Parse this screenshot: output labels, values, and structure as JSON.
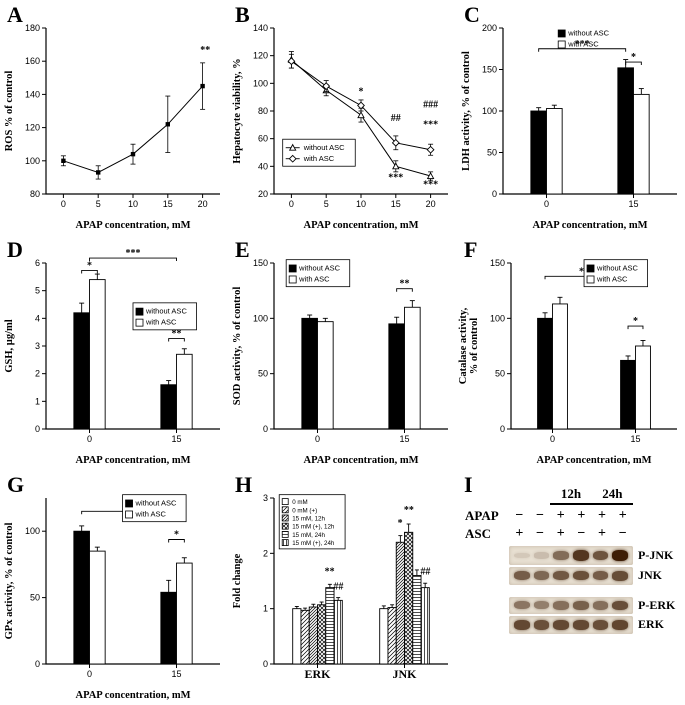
{
  "panels": [
    "A",
    "B",
    "C",
    "D",
    "E",
    "F",
    "G",
    "H",
    "I"
  ],
  "colors": {
    "bar_black": "#000000",
    "bar_white": "#ffffff",
    "background": "#ffffff"
  },
  "chart_data": [
    {
      "panel": "A",
      "type": "line",
      "xlabel": "APAP concentration, mM",
      "ylabel": "ROS % of control",
      "x": [
        0,
        5,
        10,
        15,
        20
      ],
      "xlim": [
        -2.5,
        22.5
      ],
      "ylim": [
        80,
        180
      ],
      "yticks": [
        80,
        100,
        120,
        140,
        160,
        180
      ],
      "series": [
        {
          "name": "",
          "marker": "square",
          "fill": "black",
          "values": [
            100,
            93,
            104,
            122,
            145
          ],
          "errors": [
            3,
            4,
            6,
            17,
            14
          ]
        }
      ],
      "annotations": [
        {
          "text": "**",
          "fx": 0.915,
          "fy": 0.85
        }
      ]
    },
    {
      "panel": "B",
      "type": "line",
      "xlabel": "APAP concentration, mM",
      "ylabel": "Hepatocyte viability, %",
      "x": [
        0,
        5,
        10,
        15,
        20
      ],
      "xlim": [
        -2.5,
        22.5
      ],
      "ylim": [
        20,
        140
      ],
      "yticks": [
        20,
        40,
        60,
        80,
        100,
        120,
        140
      ],
      "series": [
        {
          "name": "without ASC",
          "marker": "triangle",
          "fill": "white",
          "values": [
            117,
            95,
            77,
            40,
            33
          ],
          "errors": [
            6,
            4,
            5,
            4,
            3
          ]
        },
        {
          "name": "with ASC",
          "marker": "diamond",
          "fill": "white",
          "values": [
            116,
            98,
            84,
            57,
            52
          ],
          "errors": [
            5,
            4,
            4,
            5,
            4
          ]
        }
      ],
      "legend": {
        "pos": [
          0.05,
          0.33
        ],
        "box": true,
        "marker": "line"
      },
      "annotations": [
        {
          "text": "*",
          "fx": 0.5,
          "fy": 0.6
        },
        {
          "text": "##",
          "fx": 0.7,
          "fy": 0.44
        },
        {
          "text": "***",
          "fx": 0.7,
          "fy": 0.08
        },
        {
          "text": "###",
          "fx": 0.9,
          "fy": 0.52
        },
        {
          "text": "***",
          "fx": 0.9,
          "fy": 0.4
        },
        {
          "text": "***",
          "fx": 0.9,
          "fy": 0.04
        }
      ]
    },
    {
      "panel": "C",
      "type": "bar",
      "xlabel": "APAP concentration, mM",
      "ylabel": "LDH activity, % of control",
      "categories": [
        "0",
        "15"
      ],
      "ylim": [
        0,
        200
      ],
      "yticks": [
        0,
        50,
        100,
        150,
        200
      ],
      "series": [
        {
          "name": "without ASC",
          "fill": "black",
          "values": [
            100,
            152
          ],
          "errors": [
            4,
            10
          ]
        },
        {
          "name": "with ASC",
          "fill": "white",
          "values": [
            103,
            120
          ],
          "errors": [
            4,
            7
          ]
        }
      ],
      "legend": {
        "pos": [
          0.3,
          1.02
        ],
        "box": false,
        "marker": "square"
      },
      "annotations": [
        {
          "bracket": [
            0.205,
            0.705
          ],
          "fy": 0.875,
          "text": "***"
        },
        {
          "bracket": [
            0.705,
            0.795
          ],
          "fy": 0.795,
          "text": "*"
        }
      ]
    },
    {
      "panel": "D",
      "type": "bar",
      "xlabel": "APAP concentration, mM",
      "ylabel": "GSH, µg/ml",
      "categories": [
        "0",
        "15"
      ],
      "ylim": [
        0,
        6
      ],
      "yticks": [
        0,
        1,
        2,
        3,
        4,
        5,
        6
      ],
      "series": [
        {
          "name": "without ASC",
          "fill": "black",
          "values": [
            4.2,
            1.6
          ],
          "errors": [
            0.35,
            0.15
          ]
        },
        {
          "name": "with ASC",
          "fill": "white",
          "values": [
            5.4,
            2.7
          ],
          "errors": [
            0.2,
            0.2
          ]
        }
      ],
      "legend": {
        "pos": [
          0.5,
          0.76
        ],
        "box": true,
        "marker": "square"
      },
      "annotations": [
        {
          "bracket": [
            0.205,
            0.295
          ],
          "fy": 0.955,
          "text": "*"
        },
        {
          "bracket": [
            0.25,
            0.75
          ],
          "fy": 1.03,
          "text": "***"
        },
        {
          "bracket": [
            0.705,
            0.795
          ],
          "fy": 0.545,
          "text": "**"
        }
      ]
    },
    {
      "panel": "E",
      "type": "bar",
      "xlabel": "APAP concentration, mM",
      "ylabel": "SOD activity, % of control",
      "categories": [
        "0",
        "15"
      ],
      "ylim": [
        0,
        150
      ],
      "yticks": [
        0,
        50,
        100,
        150
      ],
      "series": [
        {
          "name": "without ASC",
          "fill": "black",
          "values": [
            100,
            95
          ],
          "errors": [
            3,
            6
          ]
        },
        {
          "name": "with ASC",
          "fill": "white",
          "values": [
            97,
            110
          ],
          "errors": [
            3,
            6
          ]
        }
      ],
      "legend": {
        "pos": [
          0.07,
          1.02
        ],
        "box": true,
        "marker": "square"
      },
      "annotations": [
        {
          "bracket": [
            0.705,
            0.795
          ],
          "fy": 0.845,
          "text": "**"
        }
      ]
    },
    {
      "panel": "F",
      "type": "bar",
      "xlabel": "APAP concentration, mM",
      "ylabel": "Catalase activity,\n% of control",
      "categories": [
        "0",
        "15"
      ],
      "ylim": [
        0,
        150
      ],
      "yticks": [
        0,
        50,
        100,
        150
      ],
      "series": [
        {
          "name": "without ASC",
          "fill": "black",
          "values": [
            100,
            62
          ],
          "errors": [
            5,
            4
          ]
        },
        {
          "name": "with ASC",
          "fill": "white",
          "values": [
            113,
            75
          ],
          "errors": [
            6,
            5
          ]
        }
      ],
      "legend": {
        "pos": [
          0.44,
          1.02
        ],
        "box": true,
        "marker": "square"
      },
      "annotations": [
        {
          "bracket": [
            0.205,
            0.705
          ],
          "fy": 0.92,
          "text": "***"
        },
        {
          "bracket": [
            0.705,
            0.795
          ],
          "fy": 0.62,
          "text": "*"
        }
      ]
    },
    {
      "panel": "G",
      "type": "bar",
      "xlabel": "APAP concentration, mM",
      "ylabel": "GPx activity, % of control",
      "categories": [
        "0",
        "15"
      ],
      "ylim": [
        0,
        125
      ],
      "yticks": [
        0,
        50,
        100
      ],
      "series": [
        {
          "name": "without ASC",
          "fill": "black",
          "values": [
            100,
            54
          ],
          "errors": [
            4,
            9
          ]
        },
        {
          "name": "with ASC",
          "fill": "white",
          "values": [
            85,
            76
          ],
          "errors": [
            3,
            4
          ]
        }
      ],
      "legend": {
        "pos": [
          0.44,
          1.02
        ],
        "box": true,
        "marker": "square"
      },
      "annotations": [
        {
          "bracket": [
            0.205,
            0.705
          ],
          "fy": 0.92,
          "text": "*"
        },
        {
          "bracket": [
            0.705,
            0.795
          ],
          "fy": 0.75,
          "text": "*"
        }
      ]
    },
    {
      "panel": "H",
      "type": "bar",
      "xlabel": "",
      "ylabel": "Fold change",
      "big_cats": true,
      "categories": [
        "ERK",
        "JNK"
      ],
      "ylim": [
        0,
        3
      ],
      "yticks": [
        0,
        1,
        2,
        3
      ],
      "series": [
        {
          "name": "0 mM",
          "fill": "white",
          "values": [
            1.0,
            1.0
          ],
          "errors": [
            0.04,
            0.05
          ]
        },
        {
          "name": "0 mM (+)",
          "fill": "diag",
          "values": [
            0.97,
            1.02
          ],
          "errors": [
            0.04,
            0.05
          ]
        },
        {
          "name": "15 mM, 12h",
          "fill": "diag2",
          "values": [
            1.03,
            2.2
          ],
          "errors": [
            0.05,
            0.12
          ]
        },
        {
          "name": "15 mM (+), 12h",
          "fill": "cross",
          "values": [
            1.07,
            2.38
          ],
          "errors": [
            0.05,
            0.15
          ]
        },
        {
          "name": "15 mM, 24h",
          "fill": "horiz",
          "values": [
            1.38,
            1.6
          ],
          "errors": [
            0.06,
            0.1
          ]
        },
        {
          "name": "15 mM (+), 24h",
          "fill": "vert",
          "values": [
            1.15,
            1.38
          ],
          "errors": [
            0.05,
            0.08
          ]
        }
      ],
      "legend": {
        "pos": [
          0.03,
          1.02
        ],
        "box": true,
        "marker": "square",
        "small": true
      },
      "annotations": [
        {
          "text": "**",
          "fx": 0.32,
          "fy": 0.54
        },
        {
          "text": "##",
          "fx": 0.37,
          "fy": 0.45
        },
        {
          "text": "*",
          "fx": 0.725,
          "fy": 0.83
        },
        {
          "text": "**",
          "fx": 0.775,
          "fy": 0.91
        },
        {
          "text": "##",
          "fx": 0.87,
          "fy": 0.54
        }
      ]
    },
    {
      "panel": "I",
      "type": "blot",
      "lanes": 6,
      "time_headers": [
        {
          "label": "12h",
          "start_lane": 2,
          "span": 2
        },
        {
          "label": "24h",
          "start_lane": 4,
          "span": 2
        }
      ],
      "condition_rows": [
        {
          "label": "APAP",
          "signs": [
            "−",
            "−",
            "+",
            "+",
            "+",
            "+"
          ]
        },
        {
          "label": "ASC",
          "signs": [
            "+",
            "−",
            "+",
            "−",
            "+",
            "−"
          ]
        }
      ],
      "blots": [
        {
          "label": "P-JNK",
          "intensities": [
            0.12,
            0.18,
            0.6,
            0.88,
            0.72,
            1.0
          ]
        },
        {
          "label": "JNK",
          "intensities": [
            0.68,
            0.62,
            0.7,
            0.74,
            0.68,
            0.76
          ]
        },
        {
          "label": "P-ERK",
          "intensities": [
            0.55,
            0.5,
            0.58,
            0.66,
            0.58,
            0.75
          ]
        },
        {
          "label": "ERK",
          "intensities": [
            0.78,
            0.74,
            0.78,
            0.78,
            0.75,
            0.8
          ]
        }
      ],
      "groups": [
        [
          0,
          1
        ],
        [
          2,
          3
        ]
      ],
      "band_color": "#3e1e06",
      "strip_bg": "#e8e0d2"
    }
  ]
}
